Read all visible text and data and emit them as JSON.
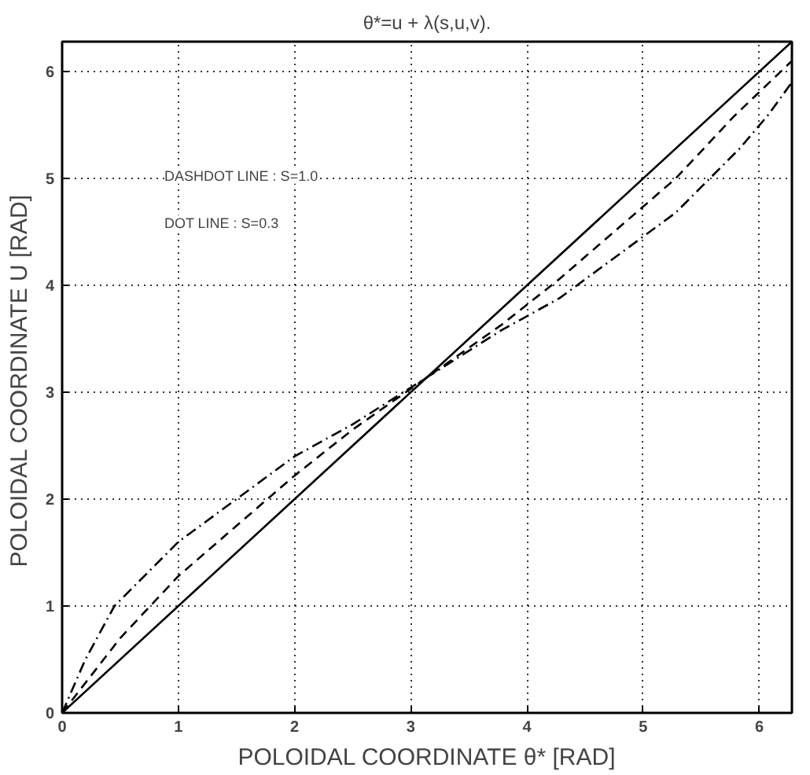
{
  "chart_data": {
    "type": "line",
    "title": "θ*=u + λ(s,u,v).",
    "xlabel": "POLOIDAL COORDINATE θ* [RAD]",
    "ylabel": "POLOIDAL COORDINATE  U [RAD]",
    "xlim": [
      0,
      6.28
    ],
    "ylim": [
      0,
      6.28
    ],
    "xticks": [
      0,
      1,
      2,
      3,
      4,
      5,
      6
    ],
    "yticks": [
      0,
      1,
      2,
      3,
      4,
      5,
      6
    ],
    "grid": true,
    "marker": "none",
    "annotations": [
      "DASHDOT LINE : S=1.0",
      "DOT LINE : S=0.3"
    ],
    "series": [
      {
        "color": "#000000",
        "line_style": "solid",
        "x": [
          0,
          6.28
        ],
        "values": [
          0,
          6.28
        ]
      },
      {
        "color": "#000000",
        "line_style": "dashed",
        "x": [
          0,
          0.5,
          1,
          1.5,
          2,
          2.5,
          3.14,
          3.78,
          4.28,
          4.78,
          5.28,
          5.78,
          6.28
        ],
        "values": [
          0,
          0.7,
          1.28,
          1.75,
          2.22,
          2.65,
          3.14,
          3.63,
          4.06,
          4.53,
          5.0,
          5.58,
          6.1
        ]
      },
      {
        "color": "#000000",
        "line_style": "dashdot",
        "x": [
          0,
          0.2,
          0.45,
          1,
          1.5,
          2,
          2.5,
          3.14,
          3.78,
          4.28,
          4.78,
          5.28,
          5.83,
          6.08,
          6.28
        ],
        "values": [
          0,
          0.5,
          1.0,
          1.6,
          2.0,
          2.4,
          2.7,
          3.14,
          3.58,
          3.88,
          4.28,
          4.68,
          5.28,
          5.6,
          5.9
        ]
      }
    ]
  }
}
